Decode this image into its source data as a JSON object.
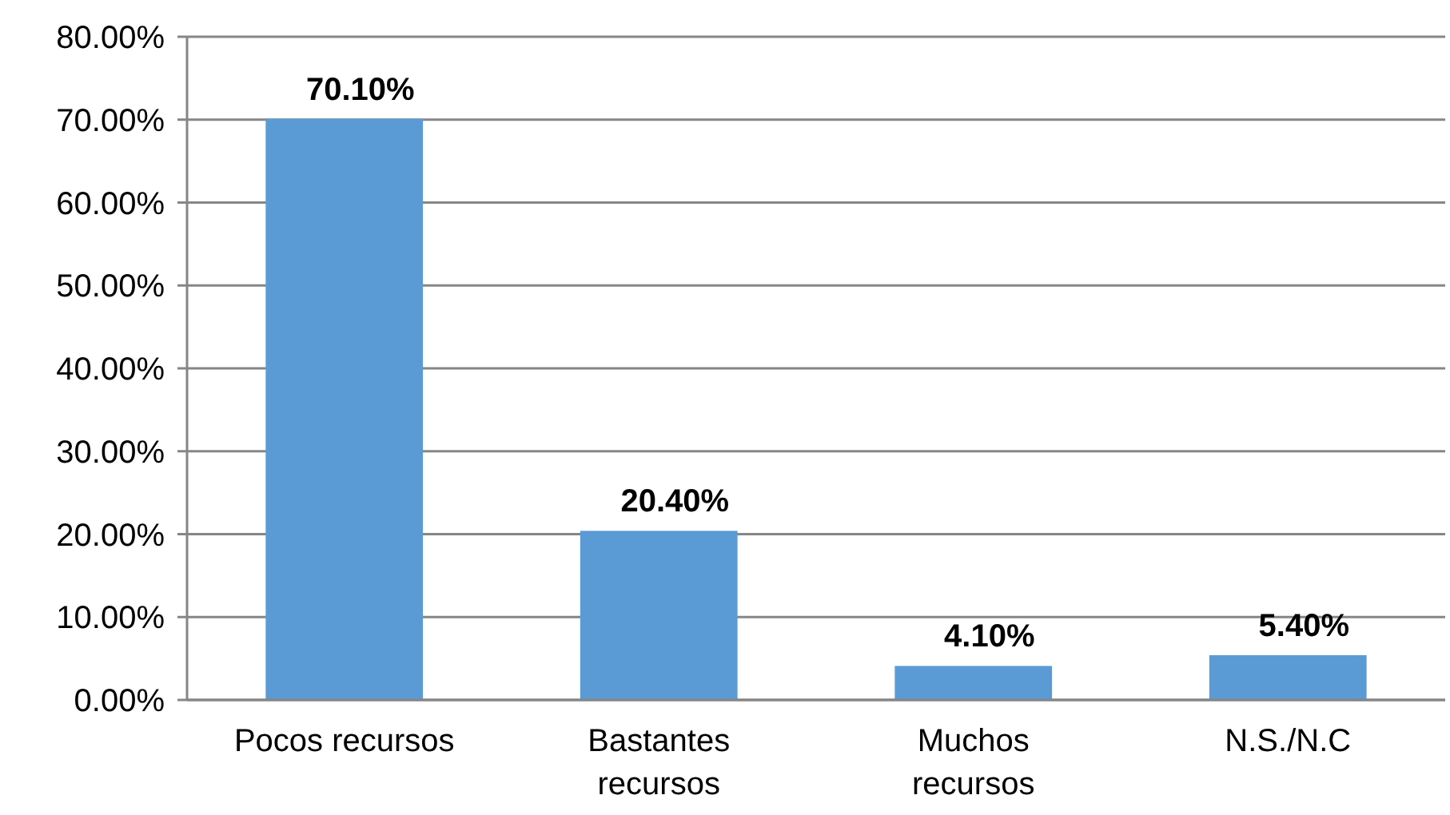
{
  "chart_data": {
    "type": "bar",
    "categories": [
      "Pocos recursos",
      "Bastantes recursos",
      "Muchos recursos",
      "N.S./N.C"
    ],
    "values": [
      70.1,
      20.4,
      4.1,
      5.4
    ],
    "color": "#5b9bd5",
    "value_labels": [
      "70.10%",
      "20.40%",
      "4.10%",
      "5.40%"
    ],
    "ylim": [
      0,
      80
    ],
    "yticks": [
      {
        "value": 0,
        "label": "0.00%"
      },
      {
        "value": 10,
        "label": "10.00%"
      },
      {
        "value": 20,
        "label": "20.00%"
      },
      {
        "value": 30,
        "label": "30.00%"
      },
      {
        "value": 40,
        "label": "40.00%"
      },
      {
        "value": 50,
        "label": "50.00%"
      },
      {
        "value": 60,
        "label": "60.00%"
      },
      {
        "value": 70,
        "label": "70.00%"
      },
      {
        "value": 80,
        "label": "80.00%"
      }
    ],
    "grid": "y"
  }
}
